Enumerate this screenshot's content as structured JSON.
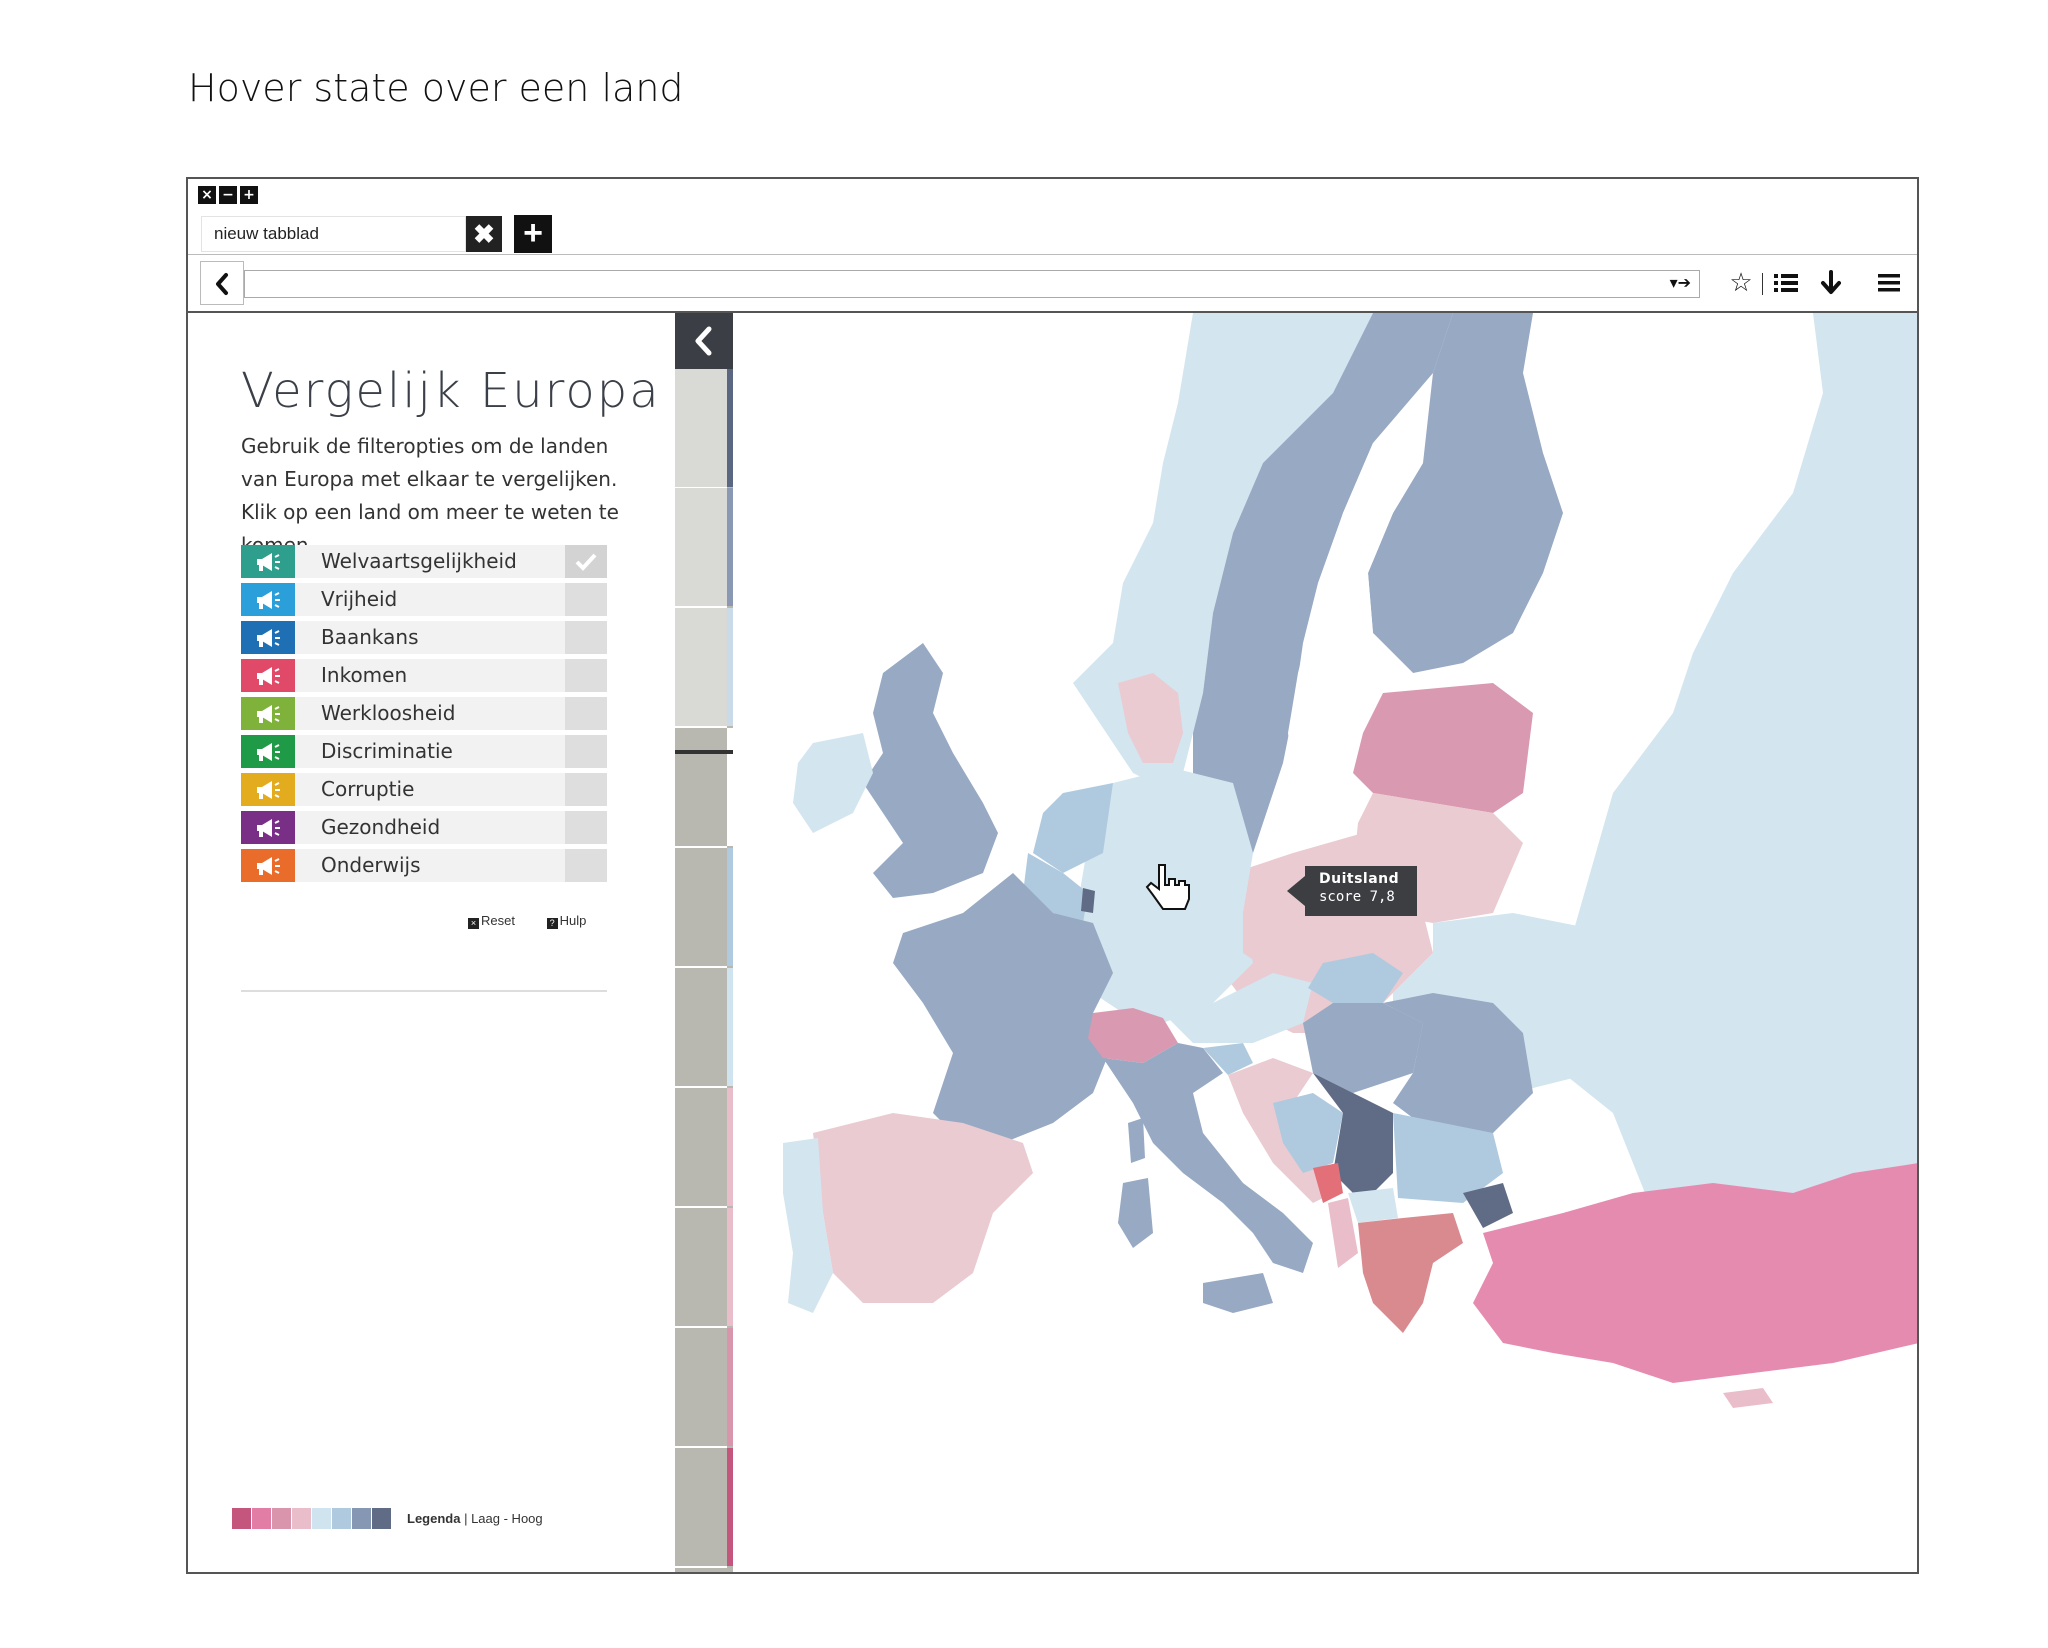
{
  "page_heading": "Hover state over een land",
  "browser": {
    "window_controls": [
      "×",
      "−",
      "+"
    ],
    "tab_label": "nieuw tabblad",
    "tab_close": "✖",
    "tab_new": "+",
    "url_value": "",
    "url_arrows": "▾➔",
    "toolbar_icons": [
      "star-icon",
      "list-icon",
      "download-icon",
      "menu-icon"
    ]
  },
  "sidebar": {
    "title": "Vergelijk Europa",
    "description": "Gebruik de filteropties om de landen van Europa met elkaar te vergelijken. Klik op een land om meer te weten te komen.",
    "filters": [
      {
        "label": "Welvaartsgelijkheid",
        "color": "#2e9e8d",
        "checked": true
      },
      {
        "label": "Vrijheid",
        "color": "#2b9fd9",
        "checked": false
      },
      {
        "label": "Baankans",
        "color": "#1f6fb5",
        "checked": false
      },
      {
        "label": "Inkomen",
        "color": "#e04a68",
        "checked": false
      },
      {
        "label": "Werkloosheid",
        "color": "#7fb23a",
        "checked": false
      },
      {
        "label": "Discriminatie",
        "color": "#1f9a47",
        "checked": false
      },
      {
        "label": "Corruptie",
        "color": "#e3ac1e",
        "checked": false
      },
      {
        "label": "Gezondheid",
        "color": "#7a2f86",
        "checked": false
      },
      {
        "label": "Onderwijs",
        "color": "#ea6c2b",
        "checked": false
      }
    ],
    "reset_label": "Reset",
    "help_label": "Hulp",
    "legend": {
      "label": "Legenda",
      "range": "Laag - Hoog",
      "colors": [
        "#c4557d",
        "#e27ea6",
        "#d895ab",
        "#e9bdc9",
        "#cfe4ef",
        "#afcadf",
        "#8697b3",
        "#606c85"
      ]
    }
  },
  "tooltip": {
    "country": "Duitsland",
    "score": "score 7,8"
  },
  "strip_segment_colors": [
    "#5b6680",
    "#8a98b4",
    "#c9dbe8",
    "#ffffff",
    "#afcadf",
    "#cfe4ef",
    "#e9bdc9",
    "#e9bdc9",
    "#d895ab",
    "#c4557d"
  ]
}
